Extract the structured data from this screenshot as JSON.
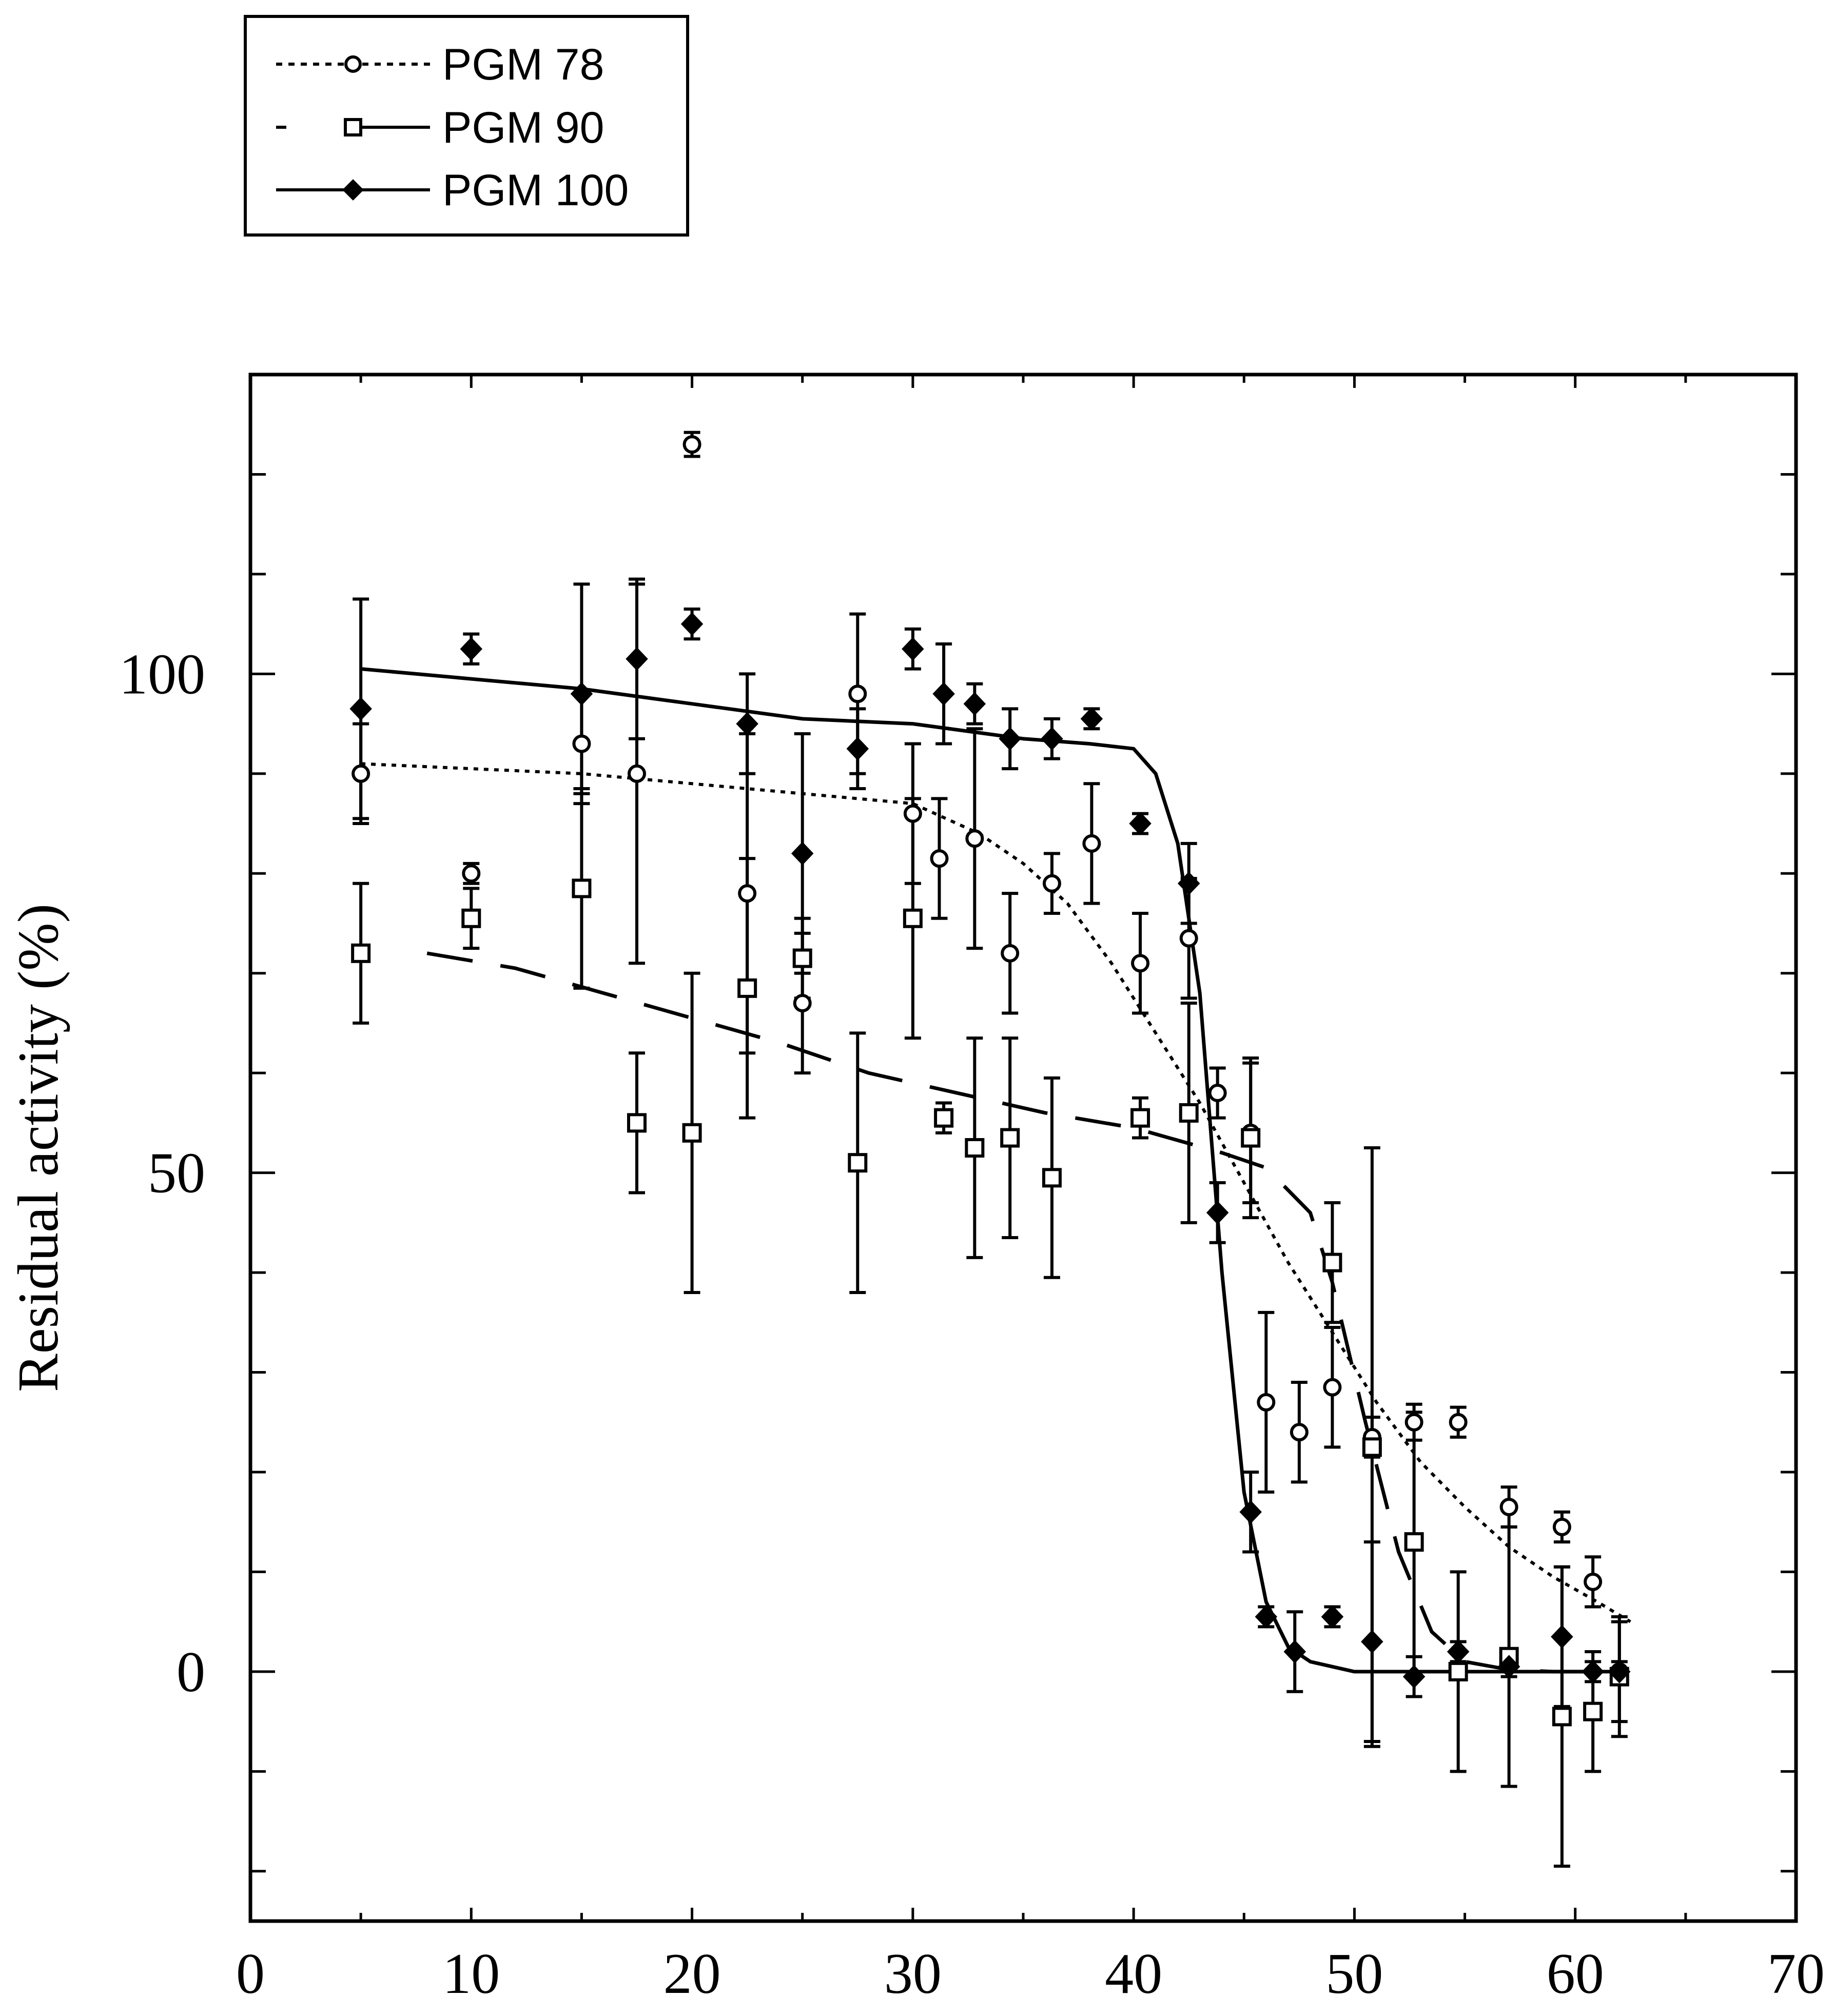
{
  "chart_data": {
    "type": "scatter",
    "title": "",
    "xlabel": "",
    "ylabel": "Residual activity (%)",
    "xlim": [
      0,
      70
    ],
    "ylim": [
      -25,
      130
    ],
    "x_ticks": [
      0,
      10,
      20,
      30,
      40,
      50,
      60,
      70
    ],
    "y_ticks": [
      0,
      50,
      100
    ],
    "y_minor_step": 10,
    "x_minor_step": 5,
    "legend_position": "top-left (above plot)",
    "series": [
      {
        "name": "PGM 78",
        "marker": "circle",
        "line_style": "dotted",
        "points": [
          {
            "x": 5,
            "y": 90,
            "err": 5
          },
          {
            "x": 10,
            "y": 80,
            "err": 1
          },
          {
            "x": 15,
            "y": 93,
            "err": 5
          },
          {
            "x": 17.5,
            "y": 90,
            "err": 19
          },
          {
            "x": 20,
            "y": 123,
            "err": 1.2
          },
          {
            "x": 22.5,
            "y": 78,
            "err": 16
          },
          {
            "x": 25,
            "y": 67,
            "err": 7
          },
          {
            "x": 27.5,
            "y": 98,
            "err": 8
          },
          {
            "x": 30,
            "y": 86,
            "err": 7
          },
          {
            "x": 31.2,
            "y": 81.5,
            "err": 6
          },
          {
            "x": 32.8,
            "y": 83.5,
            "err": 11
          },
          {
            "x": 34.4,
            "y": 72,
            "err": 6
          },
          {
            "x": 36.3,
            "y": 79,
            "err": 3
          },
          {
            "x": 38.1,
            "y": 83,
            "err": 6
          },
          {
            "x": 40.3,
            "y": 71,
            "err": 5
          },
          {
            "x": 42.5,
            "y": 73.5,
            "err": 6
          },
          {
            "x": 43.8,
            "y": 58,
            "err": 2.5
          },
          {
            "x": 45.3,
            "y": 54,
            "err": 7
          },
          {
            "x": 46,
            "y": 27,
            "err": 9
          },
          {
            "x": 47.5,
            "y": 24,
            "err": 5
          },
          {
            "x": 49,
            "y": 28.5,
            "err": 6
          },
          {
            "x": 50.8,
            "y": 23.5,
            "err": 2
          },
          {
            "x": 52.7,
            "y": 25,
            "err": 1.8
          },
          {
            "x": 54.7,
            "y": 25,
            "err": 1.5
          },
          {
            "x": 57,
            "y": 16.5,
            "err": 2
          },
          {
            "x": 59.4,
            "y": 14.5,
            "err": 1.5
          },
          {
            "x": 60.8,
            "y": 9,
            "err": 2.5
          },
          {
            "x": 62,
            "y": 0,
            "err": 5
          }
        ],
        "curve": {
          "x": [
            5,
            10,
            15,
            20,
            25,
            30,
            33,
            35,
            37,
            39,
            41,
            43,
            45,
            47,
            49,
            51,
            53,
            55,
            57,
            59,
            61,
            62.5
          ],
          "y": [
            91,
            90.5,
            90,
            89,
            88,
            87,
            84,
            81,
            77,
            71,
            64,
            57,
            49,
            41,
            34,
            27,
            21,
            16.5,
            12.5,
            9.5,
            7,
            5
          ]
        }
      },
      {
        "name": "PGM 90",
        "marker": "square",
        "line_style": "dashed",
        "points": [
          {
            "x": 5,
            "y": 72,
            "err": 7
          },
          {
            "x": 10,
            "y": 75.5,
            "err": 3
          },
          {
            "x": 15,
            "y": 78.5,
            "err": 10
          },
          {
            "x": 17.5,
            "y": 55,
            "err": 7
          },
          {
            "x": 20,
            "y": 54,
            "err": 16
          },
          {
            "x": 22.5,
            "y": 68.5,
            "err": 13
          },
          {
            "x": 25,
            "y": 71.5,
            "err": 4
          },
          {
            "x": 27.5,
            "y": 51,
            "err": 13
          },
          {
            "x": 30,
            "y": 75.5,
            "err": 12
          },
          {
            "x": 31.4,
            "y": 55.5,
            "err": 1.5
          },
          {
            "x": 32.8,
            "y": 52.5,
            "err": 11
          },
          {
            "x": 34.4,
            "y": 53.5,
            "err": 10
          },
          {
            "x": 36.3,
            "y": 49.5,
            "err": 10
          },
          {
            "x": 40.3,
            "y": 55.5,
            "err": 2
          },
          {
            "x": 42.5,
            "y": 56,
            "err": 11
          },
          {
            "x": 45.3,
            "y": 53.5,
            "err": 8
          },
          {
            "x": 49,
            "y": 41,
            "err": 6
          },
          {
            "x": 50.8,
            "y": 22.5,
            "err": 30
          },
          {
            "x": 52.7,
            "y": 13,
            "err": 13
          },
          {
            "x": 54.7,
            "y": 0,
            "err": 10
          },
          {
            "x": 57,
            "y": 1.5,
            "err": 13
          },
          {
            "x": 59.4,
            "y": -4.5,
            "err": 15
          },
          {
            "x": 60.8,
            "y": -4,
            "err": 6
          },
          {
            "x": 62,
            "y": -0.5,
            "err": 6
          }
        ],
        "curve": {
          "x": [
            8,
            12,
            16,
            20,
            24,
            28,
            32,
            36,
            40,
            44,
            46,
            48,
            49,
            50.5,
            52,
            53.5,
            55,
            57,
            59,
            62
          ],
          "y": [
            72,
            70.5,
            68,
            65.5,
            63,
            60,
            58,
            56,
            54.5,
            52,
            50.5,
            46,
            39,
            25,
            12,
            4,
            1,
            0.2,
            0,
            0
          ]
        }
      },
      {
        "name": "PGM 100",
        "marker": "diamond",
        "line_style": "solid",
        "points": [
          {
            "x": 5,
            "y": 96.5,
            "err": 11
          },
          {
            "x": 10,
            "y": 102.5,
            "err": 1.5
          },
          {
            "x": 15,
            "y": 98,
            "err": 11
          },
          {
            "x": 17.5,
            "y": 101.5,
            "err": 8
          },
          {
            "x": 20,
            "y": 105,
            "err": 1.5
          },
          {
            "x": 22.5,
            "y": 95,
            "err": 5
          },
          {
            "x": 25,
            "y": 82,
            "err": 12
          },
          {
            "x": 27.5,
            "y": 92.5,
            "err": 4
          },
          {
            "x": 30,
            "y": 102.5,
            "err": 2
          },
          {
            "x": 31.4,
            "y": 98,
            "err": 5
          },
          {
            "x": 32.8,
            "y": 97,
            "err": 2
          },
          {
            "x": 34.4,
            "y": 93.5,
            "err": 3
          },
          {
            "x": 36.3,
            "y": 93.5,
            "err": 2
          },
          {
            "x": 38.1,
            "y": 95.5,
            "err": 1
          },
          {
            "x": 40.3,
            "y": 85,
            "err": 1
          },
          {
            "x": 42.5,
            "y": 79,
            "err": 4
          },
          {
            "x": 43.8,
            "y": 46,
            "err": 3
          },
          {
            "x": 45.3,
            "y": 16,
            "err": 4
          },
          {
            "x": 46,
            "y": 5.5,
            "err": 1
          },
          {
            "x": 47.3,
            "y": 2,
            "err": 4
          },
          {
            "x": 49,
            "y": 5.5,
            "err": 1
          },
          {
            "x": 50.8,
            "y": 3,
            "err": 10
          },
          {
            "x": 52.7,
            "y": -0.5,
            "err": 2
          },
          {
            "x": 54.7,
            "y": 2,
            "err": 1
          },
          {
            "x": 57,
            "y": 0.5,
            "err": 1
          },
          {
            "x": 59.4,
            "y": 3.5,
            "err": 7
          },
          {
            "x": 60.8,
            "y": 0,
            "err": 1
          },
          {
            "x": 62,
            "y": 0,
            "err": 1
          }
        ],
        "curve": {
          "x": [
            5,
            10,
            15,
            20,
            25,
            30,
            35,
            38,
            40,
            41,
            42,
            43,
            44,
            45,
            46,
            47,
            48,
            50,
            55,
            60,
            62
          ],
          "y": [
            100.5,
            99.5,
            98.5,
            97,
            95.5,
            95,
            93.5,
            93,
            92.5,
            90,
            83,
            68,
            40,
            18,
            7,
            2.5,
            1,
            0,
            0,
            0,
            0
          ]
        }
      }
    ]
  }
}
